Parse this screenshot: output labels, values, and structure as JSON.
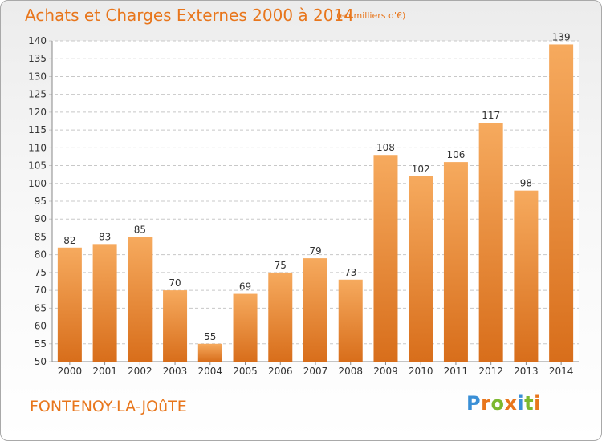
{
  "header": {
    "title": "Achats et Charges Externes 2000 à 2014",
    "subtitle": "(en milliers d'€)"
  },
  "footer": {
    "commune": "FONTENOY-LA-JOûTE",
    "logo_text": "Proxiti",
    "logo_letters": [
      {
        "char": "P",
        "color": "#3a8fd6"
      },
      {
        "char": "r",
        "color": "#e8761c"
      },
      {
        "char": "o",
        "color": "#7cb82f"
      },
      {
        "char": "x",
        "color": "#e8761c"
      },
      {
        "char": "i",
        "color": "#3a8fd6"
      },
      {
        "char": "t",
        "color": "#7cb82f"
      },
      {
        "char": "i",
        "color": "#e8761c"
      }
    ]
  },
  "colors": {
    "accent": "#e8761c",
    "bar_light": "#f6aa5e",
    "bar_dark": "#d86e1b",
    "grid": "#c8c8c8",
    "axis_text": "#333333"
  },
  "chart_data": {
    "type": "bar",
    "title": "Achats et Charges Externes 2000 à 2014",
    "unit": "(en milliers d'€)",
    "xlabel": "",
    "ylabel": "",
    "categories": [
      "2000",
      "2001",
      "2002",
      "2003",
      "2004",
      "2005",
      "2006",
      "2007",
      "2008",
      "2009",
      "2010",
      "2011",
      "2012",
      "2013",
      "2014"
    ],
    "values": [
      82,
      83,
      85,
      70,
      55,
      69,
      75,
      79,
      73,
      108,
      102,
      106,
      117,
      98,
      139
    ],
    "ylim": [
      50,
      140
    ],
    "yticks": [
      50,
      55,
      60,
      65,
      70,
      75,
      80,
      85,
      90,
      95,
      100,
      105,
      110,
      115,
      120,
      125,
      130,
      135,
      140
    ],
    "grid": true,
    "legend": "none"
  }
}
